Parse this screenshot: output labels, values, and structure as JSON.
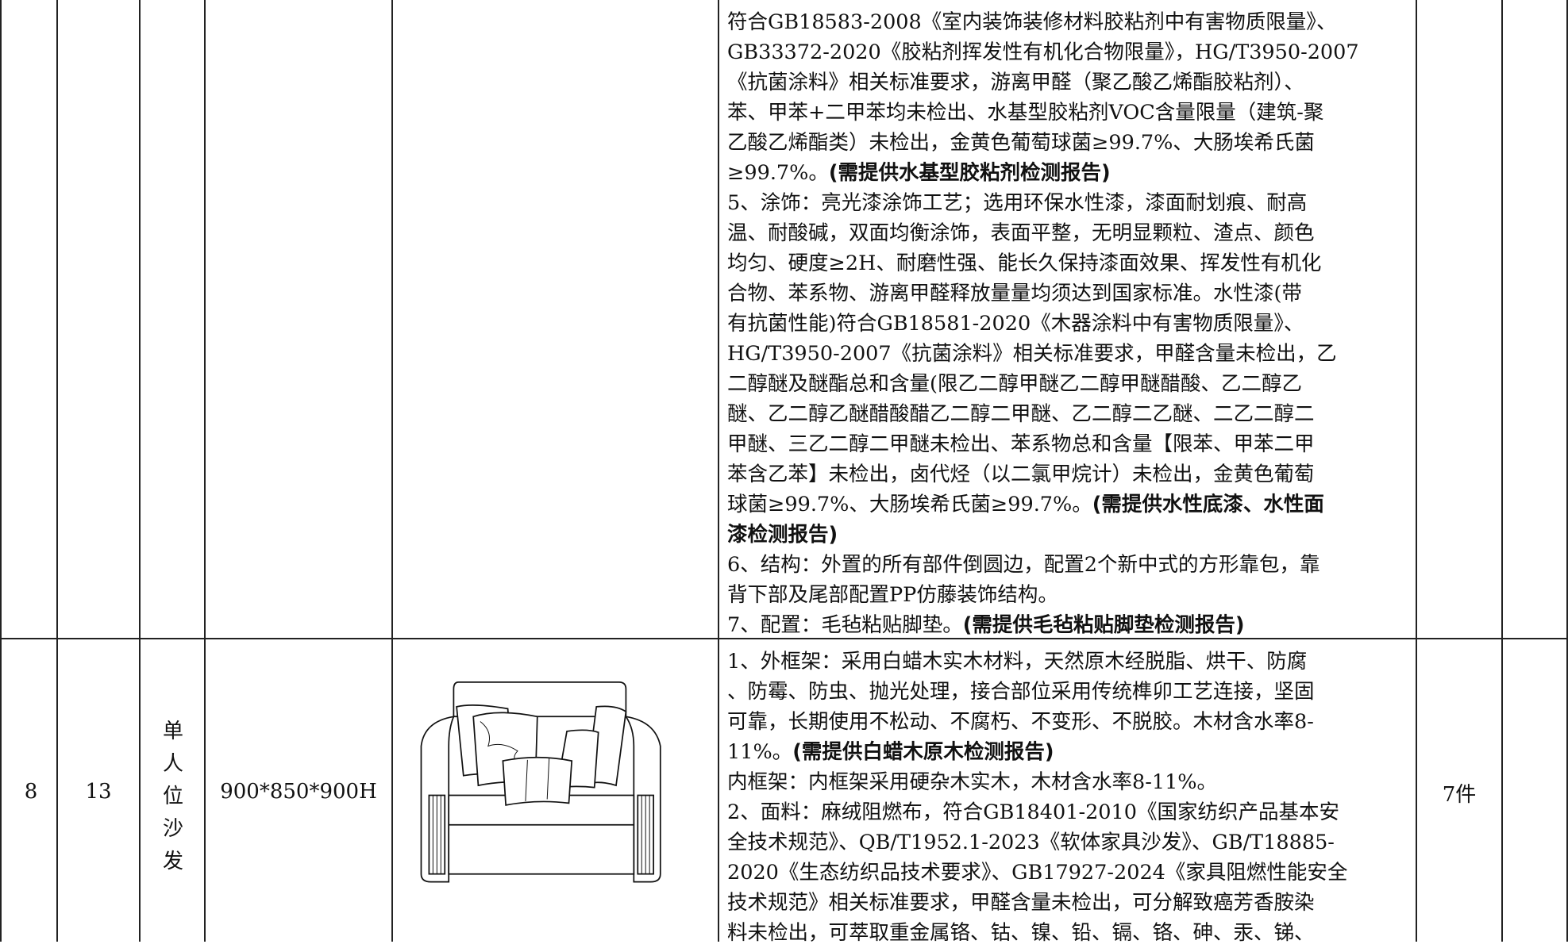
{
  "table": {
    "rows": [
      {
        "description": [
          [
            "符合GB18583-2008《室内装饰装修材料胶粘剂中有害物质限量》、"
          ],
          [
            "GB33372-2020《胶粘剂挥发性有机化合物限量》，HG/T3950-2007"
          ],
          [
            "《抗菌涂料》相关标准要求，游离甲醛（聚乙酸乙烯酯胶粘剂）、"
          ],
          [
            "苯、甲苯+二甲苯均未检出、水基型胶粘剂VOC含量限量（建筑-聚"
          ],
          [
            "乙酸乙烯酯类）未检出，金黄色葡萄球菌≥99.7%、大肠埃希氏菌"
          ],
          [
            "≥99.7%。",
            {
              "bold": "(需提供水基型胶粘剂检测报告)"
            }
          ],
          [
            "5、涂饰：亮光漆涂饰工艺；选用环保水性漆，漆面耐划痕、耐高"
          ],
          [
            "温、耐酸碱，双面均衡涂饰，表面平整，无明显颗粒、渣点、颜色"
          ],
          [
            "均匀、硬度≥2H、耐磨性强、能长久保持漆面效果、挥发性有机化"
          ],
          [
            "合物、苯系物、游离甲醛释放量量均须达到国家标准。水性漆(带"
          ],
          [
            "有抗菌性能)符合GB18581-2020《木器涂料中有害物质限量》、"
          ],
          [
            "HG/T3950-2007《抗菌涂料》相关标准要求，甲醛含量未检出，乙"
          ],
          [
            "二醇醚及醚酯总和含量(限乙二醇甲醚乙二醇甲醚醋酸、乙二醇乙"
          ],
          [
            "醚、乙二醇乙醚醋酸醋乙二醇二甲醚、乙二醇二乙醚、二乙二醇二"
          ],
          [
            "甲醚、三乙二醇二甲醚未检出、苯系物总和含量【限苯、甲苯二甲"
          ],
          [
            "苯含乙苯】未检出，卤代烃（以二氯甲烷计）未检出，金黄色葡萄"
          ],
          [
            "球菌≥99.7%、大肠埃希氏菌≥99.7%。",
            {
              "bold": "(需提供水性底漆、水性面"
            }
          ],
          [
            {
              "bold": "漆检测报告)"
            }
          ],
          [
            "6、结构：外置的所有部件倒圆边，配置2个新中式的方形靠包，靠"
          ],
          [
            "背下部及尾部配置PP仿藤装饰结构。"
          ],
          [
            "7、配置：毛毡粘贴脚垫。",
            {
              "bold": "(需提供毛毡粘贴脚垫检测报告)"
            }
          ]
        ]
      },
      {
        "no": 8,
        "item_no": 13,
        "name": "单人位沙发",
        "size": "900*850*900H",
        "description": [
          [
            "1、外框架：采用白蜡木实木材料，天然原木经脱脂、烘干、防腐"
          ],
          [
            "、防霉、防虫、抛光处理，接合部位采用传统榫卯工艺连接，坚固"
          ],
          [
            "可靠，长期使用不松动、不腐朽、不变形、不脱胶。木材含水率8-"
          ],
          [
            "11%。",
            {
              "bold": "(需提供白蜡木原木检测报告)"
            }
          ],
          [
            "内框架：内框架采用硬杂木实木，木材含水率8-11%。"
          ],
          [
            "2、面料：麻绒阻燃布，符合GB18401-2010《国家纺织产品基本安"
          ],
          [
            "全技术规范》、QB/T1952.1-2023《软体家具沙发》、GB/T18885-"
          ],
          [
            "2020《生态纺织品技术要求》、GB17927-2024《家具阻燃性能安全"
          ],
          [
            "技术规范》相关标准要求，甲醛含量未检出，可分解致癌芳香胺染"
          ],
          [
            "料未检出，可萃取重金属铬、钴、镍、铅、镉、铬、砷、汞、锑、"
          ]
        ],
        "quantity": "7件"
      }
    ]
  }
}
